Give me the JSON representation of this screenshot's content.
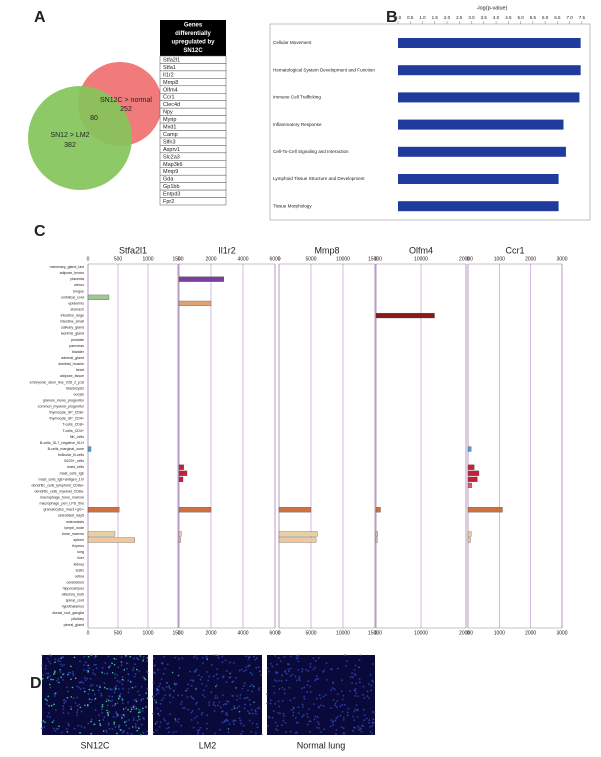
{
  "panel_labels": [
    "A",
    "B",
    "C",
    "D"
  ],
  "venn": {
    "sets": [
      {
        "label": "SN12C > normal",
        "count": 252,
        "color": "#f07474"
      },
      {
        "label": "SN12 > LM2",
        "count": 382,
        "color": "#84c45a"
      }
    ],
    "overlap": 80
  },
  "gene_table": {
    "header_lines": [
      "Genes",
      "differentially",
      "upregulated by",
      "SN12C"
    ],
    "rows": [
      "Stfa2l1",
      "Stfa1",
      "Il1r2",
      "Mmp8",
      "Olfm4",
      "Ccr1",
      "Clec4d",
      "Npy",
      "Myrip",
      "Mxd1",
      "Camp",
      "Slfn3",
      "Asprv1",
      "Slc2a3",
      "Map3k6",
      "Mmp9",
      "Gda",
      "Gp1bb",
      "Entpd3",
      "Fpr2"
    ]
  },
  "chart_data": [
    {
      "type": "hbar",
      "x_label": "-log(p-value)",
      "categories": [
        "Cellular Movement",
        "Hematological System Development and Function",
        "Immune Cell Trafficking",
        "Inflammatory Response",
        "Cell-To-Cell Signaling and Interaction",
        "Lymphoid Tissue Structure and Development",
        "Tissue Morphology"
      ],
      "values": [
        7.45,
        7.45,
        7.4,
        6.75,
        6.85,
        6.55,
        6.55
      ],
      "color": "#1f3c9c",
      "xlim": [
        0,
        7.75
      ],
      "xticks": [
        {
          "value": 0,
          "label": "0.0"
        },
        {
          "value": 0.5,
          "label": "0.5"
        },
        {
          "value": 1,
          "label": "1.0"
        },
        {
          "value": 1.5,
          "label": "1.5"
        },
        {
          "value": 2,
          "label": "2.0"
        },
        {
          "value": 2.5,
          "label": "2.5"
        },
        {
          "value": 3,
          "label": "3.0"
        },
        {
          "value": 3.5,
          "label": "3.5"
        },
        {
          "value": 4,
          "label": "4.0"
        },
        {
          "value": 4.5,
          "label": "4.5"
        },
        {
          "value": 5,
          "label": "5.0"
        },
        {
          "value": 5.5,
          "label": "5.5"
        },
        {
          "value": 6,
          "label": "6.0"
        },
        {
          "value": 6.5,
          "label": "6.5"
        },
        {
          "value": 7,
          "label": "7.0"
        },
        {
          "value": 7.5,
          "label": "7.5"
        }
      ]
    },
    {
      "type": "multi-hbar",
      "categories": [
        "mammary_gland_lact",
        "adipose_brown",
        "placenta",
        "uterus",
        "tongue",
        "umbilical_cord",
        "epidermis",
        "stomach",
        "intestine_large",
        "intestine_small",
        "salivary_gland",
        "lacrimal_gland",
        "prostate",
        "pancreas",
        "bladder",
        "adrenal_gland",
        "skeletal_muscle",
        "heart",
        "adipose_tissue",
        "embryonic_stem_line_V26_2_p16",
        "blastocysts",
        "oocyte",
        "granulo_mono_progenitor",
        "common_myeloid_progenitor",
        "thymocyte_SP_CD8+",
        "thymocyte_SP_CD4+",
        "T-cells_CD8+",
        "T-cells_CD4+",
        "NK_cells",
        "B-cells_GL7_negative_KLH",
        "B-cells_marginal_zone",
        "follicular_B-cells",
        "B220+_cells",
        "mast_cells",
        "mast_cells_IgE",
        "mast_cells_IgE+antigen_1hr",
        "dendritic_cells_lymphoid_CD8a+",
        "dendritic_cells_myeloid_CD8a-",
        "macrophage_bone_marrow",
        "macrophage_peri_LPS_thio",
        "granulocytes_mac1+gr1+",
        "osteoblast_day5",
        "osteoclasts",
        "lymph_node",
        "bone_marrow",
        "spleen",
        "thymus",
        "lung",
        "liver",
        "kidney",
        "testis",
        "retina",
        "cerebellum",
        "hippocampus",
        "olfactory_bulb",
        "spinal_cord",
        "hypothalamus",
        "dorsal_root_ganglia",
        "pituitary",
        "pineal_gland"
      ],
      "colors": [
        "#b0b0b0",
        "#b0b0b0",
        "#7b3f9f",
        "#b0b0b0",
        "#b0b0b0",
        "#9fc88f",
        "#e8a070",
        "#b0b0b0",
        "#8b1a1a",
        "#b0b0b0",
        "#b0b0b0",
        "#b0b0b0",
        "#b0b0b0",
        "#b0b0b0",
        "#b0b0b0",
        "#b0b0b0",
        "#b0b0b0",
        "#b0b0b0",
        "#b0b0b0",
        "#b0b0b0",
        "#b0b0b0",
        "#b0b0b0",
        "#b0b0b0",
        "#b0b0b0",
        "#b0b0b0",
        "#b0b0b0",
        "#b0b0b0",
        "#b0b0b0",
        "#b0b0b0",
        "#b0b0b0",
        "#5b9bd5",
        "#b0b0b0",
        "#b0b0b0",
        "#c8203c",
        "#c8203c",
        "#c8203c",
        "#d06070",
        "#b0b0b0",
        "#b0b0b0",
        "#b0b0b0",
        "#d0703a",
        "#b0b0b0",
        "#b0b0b0",
        "#b0b0b0",
        "#e8d0a0",
        "#f0c8a0",
        "#b0b0b0",
        "#b0b0b0",
        "#b0b0b0",
        "#b0b0b0",
        "#b0b0b0",
        "#b0b0b0",
        "#b0b0b0",
        "#b0b0b0",
        "#b0b0b0",
        "#b0b0b0",
        "#b0b0b0",
        "#b0b0b0",
        "#b0b0b0",
        "#b0b0b0"
      ],
      "series": [
        {
          "name": "Stfa2l1",
          "xlim": [
            0,
            1500
          ],
          "xticks": [
            0,
            500,
            1000,
            1500
          ],
          "values": [
            null,
            null,
            null,
            null,
            null,
            350,
            null,
            null,
            null,
            null,
            null,
            null,
            null,
            null,
            null,
            null,
            null,
            null,
            null,
            null,
            null,
            null,
            null,
            null,
            null,
            null,
            null,
            null,
            null,
            null,
            50,
            null,
            null,
            null,
            null,
            null,
            null,
            null,
            null,
            null,
            520,
            null,
            null,
            null,
            450,
            780,
            null,
            null,
            null,
            null,
            null,
            null,
            null,
            null,
            null,
            null,
            null,
            null,
            null,
            null
          ]
        },
        {
          "name": "Il1r2",
          "xlim": [
            0,
            6000
          ],
          "xticks": [
            0,
            2000,
            4000,
            6000
          ],
          "values": [
            null,
            null,
            2800,
            null,
            null,
            null,
            2000,
            null,
            null,
            null,
            null,
            null,
            null,
            null,
            null,
            null,
            null,
            null,
            null,
            null,
            null,
            null,
            null,
            null,
            null,
            null,
            null,
            null,
            null,
            null,
            null,
            null,
            null,
            300,
            500,
            250,
            null,
            null,
            null,
            null,
            2000,
            null,
            null,
            null,
            150,
            100,
            null,
            null,
            null,
            null,
            null,
            null,
            null,
            null,
            null,
            null,
            null,
            null,
            null,
            null
          ]
        },
        {
          "name": "Mmp8",
          "xlim": [
            0,
            15000
          ],
          "xticks": [
            0,
            5000,
            10000,
            15000
          ],
          "values": [
            null,
            null,
            null,
            null,
            null,
            null,
            null,
            null,
            null,
            null,
            null,
            null,
            null,
            null,
            null,
            null,
            null,
            null,
            null,
            null,
            null,
            null,
            null,
            null,
            null,
            null,
            null,
            null,
            null,
            null,
            null,
            null,
            null,
            null,
            null,
            null,
            null,
            null,
            null,
            null,
            5000,
            null,
            null,
            null,
            6000,
            5800,
            null,
            null,
            null,
            null,
            null,
            null,
            null,
            null,
            null,
            null,
            null,
            null,
            null,
            null
          ]
        },
        {
          "name": "Olfm4",
          "xlim": [
            0,
            20000
          ],
          "xticks": [
            0,
            10000,
            20000
          ],
          "values": [
            null,
            null,
            null,
            null,
            null,
            null,
            null,
            null,
            13000,
            null,
            null,
            null,
            null,
            null,
            null,
            null,
            null,
            null,
            null,
            null,
            null,
            null,
            null,
            null,
            null,
            null,
            null,
            null,
            null,
            null,
            null,
            null,
            null,
            null,
            null,
            null,
            null,
            null,
            null,
            null,
            1000,
            null,
            null,
            null,
            400,
            300,
            null,
            null,
            null,
            null,
            null,
            null,
            null,
            null,
            null,
            null,
            null,
            null,
            null,
            null
          ]
        },
        {
          "name": "Ccr1",
          "xlim": [
            0,
            3000
          ],
          "xticks": [
            0,
            1000,
            2000,
            3000
          ],
          "values": [
            null,
            null,
            null,
            null,
            null,
            null,
            null,
            null,
            null,
            null,
            null,
            null,
            null,
            null,
            null,
            null,
            null,
            null,
            null,
            null,
            null,
            null,
            null,
            null,
            null,
            null,
            null,
            null,
            null,
            null,
            100,
            null,
            null,
            200,
            350,
            300,
            120,
            null,
            null,
            null,
            1100,
            null,
            null,
            null,
            100,
            80,
            null,
            null,
            null,
            null,
            null,
            null,
            null,
            null,
            null,
            null,
            null,
            null,
            null,
            null
          ]
        }
      ]
    }
  ],
  "micrographs": {
    "captions": [
      "SN12C",
      "LM2",
      "Normal lung"
    ]
  }
}
